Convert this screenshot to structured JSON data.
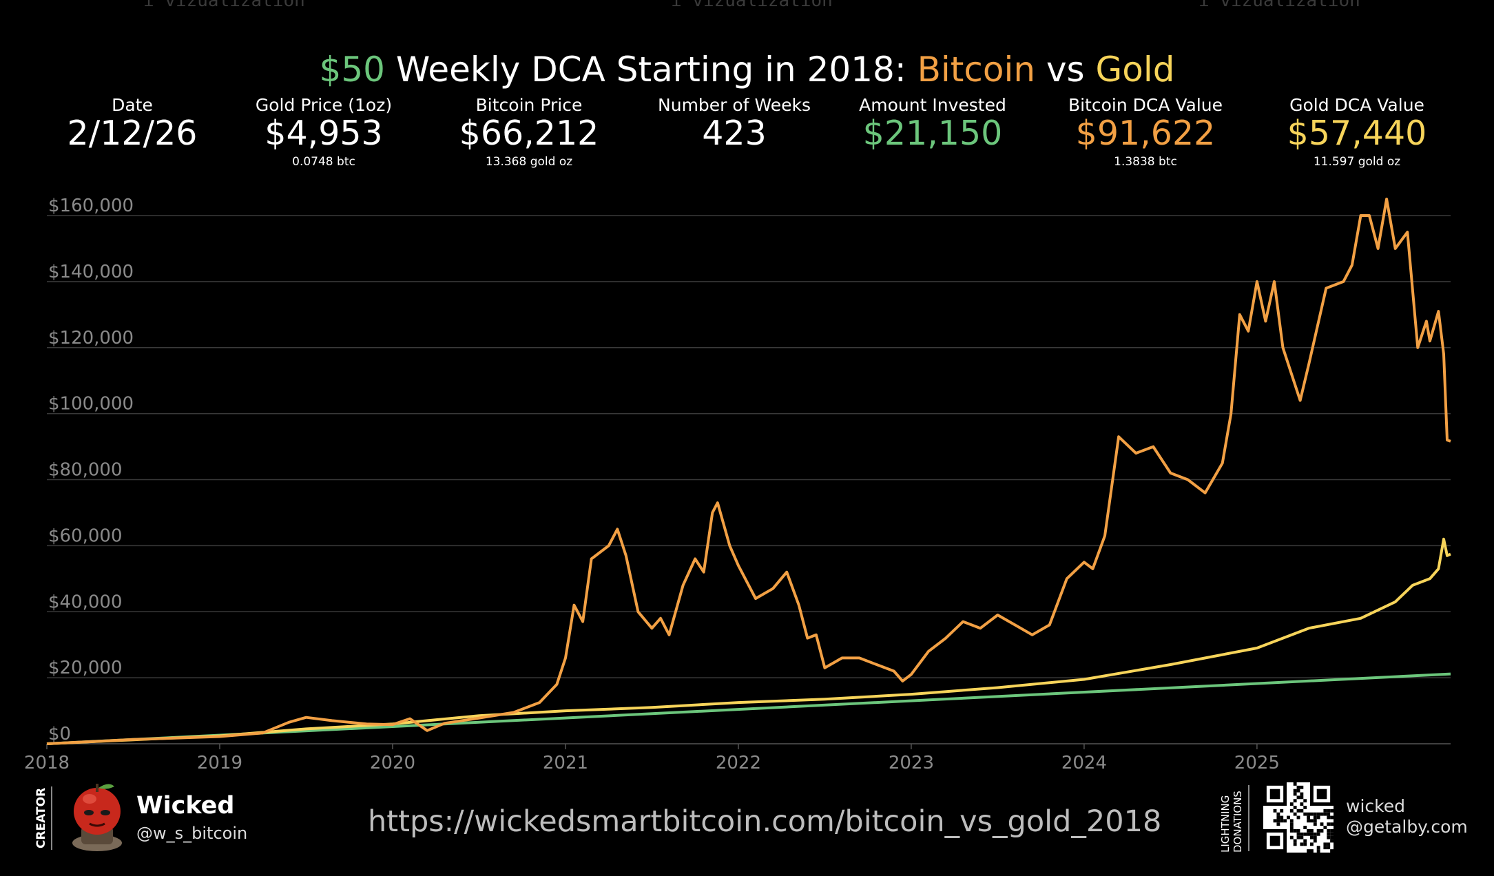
{
  "watermark": [
    "i vizualization",
    "i vizualization",
    "i vizualization"
  ],
  "title": {
    "part1": "$50",
    "part2": " Weekly DCA Starting in 2018: ",
    "part3": "Bitcoin",
    "part4": " vs ",
    "part5": "Gold"
  },
  "colors": {
    "green": "#6cc67c",
    "orange": "#f2a044",
    "gold": "#f7d45a",
    "grid": "#3a3a3a",
    "axis_text": "#8a8a8a"
  },
  "stats": [
    {
      "label": "Date",
      "value": "2/12/26",
      "sub": "",
      "color": "#ffffff"
    },
    {
      "label": "Gold Price (1oz)",
      "value": "$4,953",
      "sub": "0.0748 btc",
      "color": "#ffffff"
    },
    {
      "label": "Bitcoin Price",
      "value": "$66,212",
      "sub": "13.368 gold oz",
      "color": "#ffffff"
    },
    {
      "label": "Number of Weeks",
      "value": "423",
      "sub": "",
      "color": "#ffffff"
    },
    {
      "label": "Amount Invested",
      "value": "$21,150",
      "sub": "",
      "color": "#6cc67c"
    },
    {
      "label": "Bitcoin DCA Value",
      "value": "$91,622",
      "sub": "1.3838 btc",
      "color": "#f2a044"
    },
    {
      "label": "Gold DCA Value",
      "value": "$57,440",
      "sub": "11.597 gold oz",
      "color": "#f7d45a"
    }
  ],
  "chart_data": {
    "type": "line",
    "title": "$50 Weekly DCA Starting in 2018: Bitcoin vs Gold",
    "xlabel": "",
    "ylabel": "",
    "xlim": [
      2018.0,
      2026.12
    ],
    "ylim": [
      0,
      160000
    ],
    "grid": true,
    "x_ticks": [
      "2018",
      "2019",
      "2020",
      "2021",
      "2022",
      "2023",
      "2024",
      "2025"
    ],
    "y_ticks": [
      {
        "value": 0,
        "label": "$0"
      },
      {
        "value": 20000,
        "label": "$20,000"
      },
      {
        "value": 40000,
        "label": "$40,000"
      },
      {
        "value": 60000,
        "label": "$60,000"
      },
      {
        "value": 80000,
        "label": "$80,000"
      },
      {
        "value": 100000,
        "label": "$100,000"
      },
      {
        "value": 120000,
        "label": "$120,000"
      },
      {
        "value": 140000,
        "label": "$140,000"
      },
      {
        "value": 160000,
        "label": "$160,000"
      }
    ],
    "series": [
      {
        "name": "Bitcoin",
        "color": "#f2a044",
        "points": [
          [
            2018.0,
            0
          ],
          [
            2018.5,
            1300
          ],
          [
            2019.0,
            2200
          ],
          [
            2019.25,
            3300
          ],
          [
            2019.4,
            6500
          ],
          [
            2019.5,
            8000
          ],
          [
            2019.65,
            7000
          ],
          [
            2019.85,
            6000
          ],
          [
            2020.0,
            5800
          ],
          [
            2020.1,
            7600
          ],
          [
            2020.2,
            4000
          ],
          [
            2020.3,
            6200
          ],
          [
            2020.5,
            7800
          ],
          [
            2020.7,
            9500
          ],
          [
            2020.85,
            12500
          ],
          [
            2020.95,
            18000
          ],
          [
            2021.0,
            26000
          ],
          [
            2021.05,
            42000
          ],
          [
            2021.1,
            37000
          ],
          [
            2021.15,
            56000
          ],
          [
            2021.25,
            60000
          ],
          [
            2021.3,
            65000
          ],
          [
            2021.35,
            57000
          ],
          [
            2021.42,
            40000
          ],
          [
            2021.5,
            35000
          ],
          [
            2021.55,
            38000
          ],
          [
            2021.6,
            33000
          ],
          [
            2021.68,
            48000
          ],
          [
            2021.75,
            56000
          ],
          [
            2021.8,
            52000
          ],
          [
            2021.85,
            70000
          ],
          [
            2021.88,
            73000
          ],
          [
            2021.95,
            60000
          ],
          [
            2022.0,
            54000
          ],
          [
            2022.1,
            44000
          ],
          [
            2022.2,
            47000
          ],
          [
            2022.28,
            52000
          ],
          [
            2022.35,
            42000
          ],
          [
            2022.4,
            32000
          ],
          [
            2022.45,
            33000
          ],
          [
            2022.5,
            23000
          ],
          [
            2022.6,
            26000
          ],
          [
            2022.7,
            26000
          ],
          [
            2022.8,
            24000
          ],
          [
            2022.9,
            22000
          ],
          [
            2022.95,
            19000
          ],
          [
            2023.0,
            21000
          ],
          [
            2023.1,
            28000
          ],
          [
            2023.2,
            32000
          ],
          [
            2023.3,
            37000
          ],
          [
            2023.4,
            35000
          ],
          [
            2023.5,
            39000
          ],
          [
            2023.6,
            36000
          ],
          [
            2023.7,
            33000
          ],
          [
            2023.8,
            36000
          ],
          [
            2023.9,
            50000
          ],
          [
            2024.0,
            55000
          ],
          [
            2024.05,
            53000
          ],
          [
            2024.12,
            63000
          ],
          [
            2024.2,
            93000
          ],
          [
            2024.3,
            88000
          ],
          [
            2024.4,
            90000
          ],
          [
            2024.5,
            82000
          ],
          [
            2024.6,
            80000
          ],
          [
            2024.7,
            76000
          ],
          [
            2024.8,
            85000
          ],
          [
            2024.85,
            100000
          ],
          [
            2024.9,
            130000
          ],
          [
            2024.95,
            125000
          ],
          [
            2025.0,
            140000
          ],
          [
            2025.05,
            128000
          ],
          [
            2025.1,
            140000
          ],
          [
            2025.15,
            120000
          ],
          [
            2025.25,
            104000
          ],
          [
            2025.3,
            115000
          ],
          [
            2025.4,
            138000
          ],
          [
            2025.5,
            140000
          ],
          [
            2025.55,
            145000
          ],
          [
            2025.6,
            160000
          ],
          [
            2025.65,
            160000
          ],
          [
            2025.7,
            150000
          ],
          [
            2025.75,
            165000
          ],
          [
            2025.8,
            150000
          ],
          [
            2025.87,
            155000
          ],
          [
            2025.93,
            120000
          ],
          [
            2025.98,
            128000
          ],
          [
            2026.0,
            122000
          ],
          [
            2026.05,
            131000
          ],
          [
            2026.08,
            118000
          ],
          [
            2026.1,
            92000
          ],
          [
            2026.12,
            91622
          ]
        ]
      },
      {
        "name": "Gold",
        "color": "#f7d45a",
        "points": [
          [
            2018.0,
            0
          ],
          [
            2018.5,
            1200
          ],
          [
            2019.0,
            2400
          ],
          [
            2019.5,
            4500
          ],
          [
            2020.0,
            6000
          ],
          [
            2020.5,
            8500
          ],
          [
            2021.0,
            10000
          ],
          [
            2021.5,
            11000
          ],
          [
            2022.0,
            12500
          ],
          [
            2022.5,
            13500
          ],
          [
            2023.0,
            15000
          ],
          [
            2023.5,
            17000
          ],
          [
            2024.0,
            19500
          ],
          [
            2024.5,
            24000
          ],
          [
            2025.0,
            29000
          ],
          [
            2025.3,
            35000
          ],
          [
            2025.6,
            38000
          ],
          [
            2025.8,
            43000
          ],
          [
            2025.9,
            48000
          ],
          [
            2026.0,
            50000
          ],
          [
            2026.05,
            53000
          ],
          [
            2026.08,
            62000
          ],
          [
            2026.1,
            57000
          ],
          [
            2026.12,
            57440
          ]
        ]
      },
      {
        "name": "Amount Invested",
        "color": "#6cc67c",
        "points": [
          [
            2018.0,
            0
          ],
          [
            2026.12,
            21150
          ]
        ]
      }
    ]
  },
  "footer": {
    "creator_label": "CREATOR",
    "creator_name": "Wicked",
    "creator_handle": "@w_s_bitcoin",
    "url": "https://wickedsmartbitcoin.com/bitcoin_vs_gold_2018",
    "lightning_label_1": "LIGHTNING",
    "lightning_label_2": "DONATIONS",
    "lightning_addr_1": "wicked",
    "lightning_addr_2": "@getalby.com"
  }
}
